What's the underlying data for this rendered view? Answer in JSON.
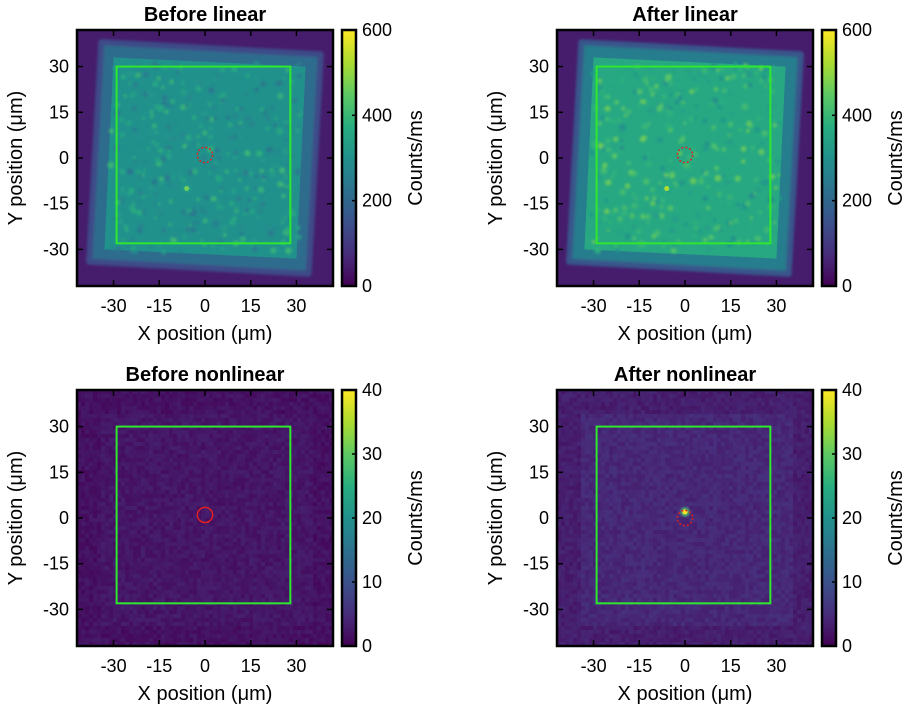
{
  "chart_data": [
    {
      "type": "heatmap",
      "title": "Before linear",
      "xlabel": "X position (μm)",
      "ylabel": "Y position (μm)",
      "xticks": [
        "-30",
        "-15",
        "0",
        "15",
        "30"
      ],
      "yticks": [
        "30",
        "15",
        "0",
        "-15",
        "-30"
      ],
      "xlim": [
        -42,
        42
      ],
      "ylim": [
        -42,
        42
      ],
      "colorbar": {
        "label": "Counts/ms",
        "range": [
          0,
          600
        ],
        "ticks": [
          "600",
          "400",
          "200",
          "0"
        ],
        "colormap": "viridis"
      },
      "pattern": "tilted-square-speckle",
      "mean_level": 0.5,
      "background_level": 0.08,
      "hotspot": {
        "x": -6,
        "y": -10,
        "level": 0.78
      },
      "roi_box": {
        "x": [
          -29,
          28
        ],
        "y": [
          -28,
          30
        ],
        "color": "#2ee82e"
      },
      "center_marker": {
        "x": 0,
        "y": 1,
        "radius": 2.5,
        "color": "#e02020",
        "style": "dotted"
      }
    },
    {
      "type": "heatmap",
      "title": "After linear",
      "xlabel": "X position (μm)",
      "ylabel": "Y position (μm)",
      "xticks": [
        "-30",
        "-15",
        "0",
        "15",
        "30"
      ],
      "yticks": [
        "30",
        "15",
        "0",
        "-15",
        "-30"
      ],
      "xlim": [
        -42,
        42
      ],
      "ylim": [
        -42,
        42
      ],
      "colorbar": {
        "label": "Counts/ms",
        "range": [
          0,
          600
        ],
        "ticks": [
          "600",
          "400",
          "200",
          "0"
        ],
        "colormap": "viridis"
      },
      "pattern": "tilted-square-speckle",
      "mean_level": 0.6,
      "background_level": 0.08,
      "hotspot": {
        "x": -6,
        "y": -10,
        "level": 0.88
      },
      "roi_box": {
        "x": [
          -29,
          28
        ],
        "y": [
          -28,
          30
        ],
        "color": "#2ee82e"
      },
      "center_marker": {
        "x": 0,
        "y": 1,
        "radius": 2.5,
        "color": "#e02020",
        "style": "dotted"
      }
    },
    {
      "type": "heatmap",
      "title": "Before nonlinear",
      "xlabel": "X position (μm)",
      "ylabel": "Y position (μm)",
      "xticks": [
        "-30",
        "-15",
        "0",
        "15",
        "30"
      ],
      "yticks": [
        "30",
        "15",
        "0",
        "-15",
        "-30"
      ],
      "xlim": [
        -42,
        42
      ],
      "ylim": [
        -42,
        42
      ],
      "colorbar": {
        "label": "Counts/ms",
        "range": [
          0,
          40
        ],
        "ticks": [
          "40",
          "30",
          "20",
          "10",
          "0"
        ],
        "colormap": "viridis"
      },
      "pattern": "uniform-noise",
      "mean_level": 0.06,
      "background_level": 0.04,
      "hotspot": null,
      "roi_box": {
        "x": [
          -29,
          28
        ],
        "y": [
          -28,
          30
        ],
        "color": "#2ee82e"
      },
      "center_marker": {
        "x": 0,
        "y": 1,
        "radius": 2.5,
        "color": "#e02020",
        "style": "solid"
      }
    },
    {
      "type": "heatmap",
      "title": "After nonlinear",
      "xlabel": "X position (μm)",
      "ylabel": "Y position (μm)",
      "xticks": [
        "-30",
        "-15",
        "0",
        "15",
        "30"
      ],
      "yticks": [
        "30",
        "15",
        "0",
        "-15",
        "-30"
      ],
      "xlim": [
        -42,
        42
      ],
      "ylim": [
        -42,
        42
      ],
      "colorbar": {
        "label": "Counts/ms",
        "range": [
          0,
          40
        ],
        "ticks": [
          "40",
          "30",
          "20",
          "10",
          "0"
        ],
        "colormap": "viridis"
      },
      "pattern": "uniform-noise",
      "mean_level": 0.11,
      "background_level": 0.05,
      "hotspot": {
        "x": 0,
        "y": 2,
        "level": 1.0
      },
      "roi_box": {
        "x": [
          -29,
          28
        ],
        "y": [
          -28,
          30
        ],
        "color": "#2ee82e"
      },
      "center_marker": {
        "x": 0,
        "y": 0,
        "radius": 2.5,
        "color": "#e02020",
        "style": "dotted"
      }
    }
  ]
}
